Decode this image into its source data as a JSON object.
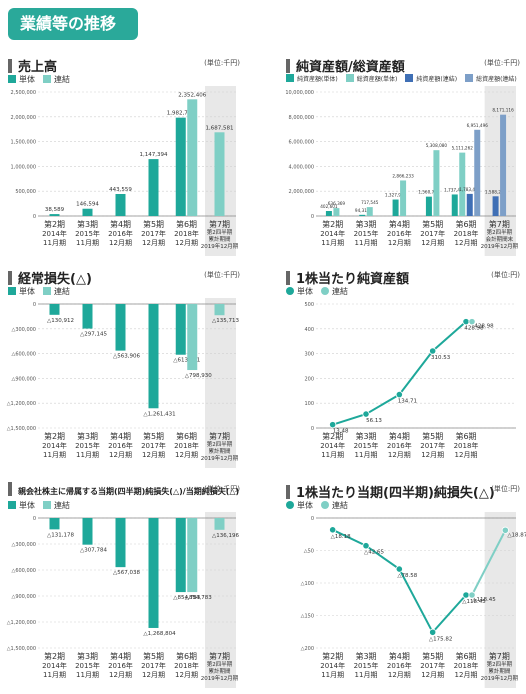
{
  "page_title": "業績等の推移",
  "chart_data": [
    {
      "id": "c1",
      "type": "bar",
      "title": "売上高",
      "unit": "(単位:千円)",
      "ylim": [
        0,
        2500000
      ],
      "yticks": [
        "0",
        "500,000",
        "1,000,000",
        "1,500,000",
        "2,000,000",
        "2,500,000"
      ],
      "categories": [
        [
          "第2期",
          "2014年",
          "11月期"
        ],
        [
          "第3期",
          "2015年",
          "11月期"
        ],
        [
          "第4期",
          "2016年",
          "12月期"
        ],
        [
          "第5期",
          "2017年",
          "12月期"
        ],
        [
          "第6期",
          "2018年",
          "12月期"
        ],
        [
          "第7期",
          "第2四半期",
          "累計期間",
          "2019年12月期"
        ]
      ],
      "series": [
        {
          "name": "単体",
          "color": "#1ea89a",
          "values": [
            38589,
            146594,
            443559,
            1147394,
            1982733,
            null
          ],
          "labels": [
            "38,589",
            "146,594",
            "443,559",
            "1,147,394",
            "1,982,733",
            ""
          ]
        },
        {
          "name": "連結",
          "color": "#7fcfc5",
          "values": [
            null,
            null,
            null,
            null,
            2352406,
            1687581
          ],
          "labels": [
            "",
            "",
            "",
            "",
            "2,352,406",
            "1,687,581"
          ]
        }
      ]
    },
    {
      "id": "c2",
      "type": "bar",
      "title": "純資産額/総資産額",
      "unit": "(単位:千円)",
      "ylim": [
        0,
        10000000
      ],
      "yticks": [
        "0",
        "2,000,000",
        "4,000,000",
        "6,000,000",
        "8,000,000",
        "10,000,000"
      ],
      "categories": [
        [
          "第2期",
          "2014年",
          "11月期"
        ],
        [
          "第3期",
          "2015年",
          "11月期"
        ],
        [
          "第4期",
          "2016年",
          "12月期"
        ],
        [
          "第5期",
          "2017年",
          "12月期"
        ],
        [
          "第6期",
          "2018年",
          "12月期"
        ],
        [
          "第7期",
          "第2四半期",
          "会計期間末",
          "2019年12月期"
        ]
      ],
      "series": [
        {
          "name": "純資産額(単体)",
          "color": "#1ea89a",
          "values": [
            402601,
            94311,
            1327923,
            1560774,
            1737463,
            null
          ],
          "labels": [
            "402,601",
            "94,311",
            "1,327,923",
            "1,560,774",
            "1,737,463",
            ""
          ]
        },
        {
          "name": "総資産額(単体)",
          "color": "#7fcfc5",
          "values": [
            636369,
            717545,
            2866233,
            5308080,
            5111262,
            null
          ],
          "labels": [
            "636,369",
            "717,545",
            "2,866,233",
            "5,308,080",
            "5,111,262",
            ""
          ]
        },
        {
          "name": "純資産額(連結)",
          "color": "#3f6fb5",
          "values": [
            null,
            null,
            null,
            null,
            1783443,
            1588242
          ],
          "labels": [
            "",
            "",
            "",
            "",
            "1,783,443",
            "1,588,242"
          ]
        },
        {
          "name": "総資産額(連結)",
          "color": "#7d9fc8",
          "values": [
            null,
            null,
            null,
            null,
            6951496,
            8171116
          ],
          "labels": [
            "",
            "",
            "",
            "",
            "6,951,496",
            "8,171,116"
          ]
        }
      ]
    },
    {
      "id": "c3",
      "type": "bar",
      "title": "経常損失(△)",
      "unit": "(単位:千円)",
      "ylim": [
        -1500000,
        0
      ],
      "yticks": [
        "0",
        "△300,000",
        "△600,000",
        "△900,000",
        "△1,200,000",
        "△1,500,000"
      ],
      "categories": [
        [
          "第2期",
          "2014年",
          "11月期"
        ],
        [
          "第3期",
          "2015年",
          "11月期"
        ],
        [
          "第4期",
          "2016年",
          "12月期"
        ],
        [
          "第5期",
          "2017年",
          "12月期"
        ],
        [
          "第6期",
          "2018年",
          "12月期"
        ],
        [
          "第7期",
          "第2四半期",
          "累計期間",
          "2019年12月期"
        ]
      ],
      "series": [
        {
          "name": "単体",
          "color": "#1ea89a",
          "values": [
            -130912,
            -297145,
            -563906,
            -1261431,
            -613611,
            null
          ],
          "labels": [
            "△130,912",
            "△297,145",
            "△563,906",
            "△1,261,431",
            "△613,611",
            ""
          ]
        },
        {
          "name": "連結",
          "color": "#7fcfc5",
          "values": [
            null,
            null,
            null,
            null,
            -798930,
            -135713
          ],
          "labels": [
            "",
            "",
            "",
            "",
            "△798,930",
            "△135,713"
          ]
        }
      ]
    },
    {
      "id": "c4",
      "type": "line",
      "title": "1株当たり純資産額",
      "unit": "(単位:円)",
      "ylim": [
        0,
        500
      ],
      "yticks": [
        "0",
        "100",
        "200",
        "300",
        "400",
        "500"
      ],
      "categories": [
        [
          "第2期",
          "2014年",
          "11月期"
        ],
        [
          "第3期",
          "2015年",
          "11月期"
        ],
        [
          "第4期",
          "2016年",
          "12月期"
        ],
        [
          "第5期",
          "2017年",
          "12月期"
        ],
        [
          "第6期",
          "2018年",
          "12月期"
        ]
      ],
      "series": [
        {
          "name": "単体",
          "color": "#1ea89a",
          "values": [
            13.48,
            56.13,
            134.71,
            310.53,
            428.98
          ],
          "labels": [
            "13.48",
            "56.13",
            "134.71",
            "310.53",
            "428.98"
          ]
        },
        {
          "name": "連結",
          "color": "#7fcfc5",
          "values": [
            null,
            null,
            null,
            null,
            428.98
          ],
          "labels": [
            "",
            "",
            "",
            "",
            "428.98"
          ]
        }
      ]
    },
    {
      "id": "c5",
      "type": "bar",
      "title": "親会社株主に帰属する当期(四半期)純損失(△)/当期純損失(△)",
      "unit": "(単位:千円)",
      "ylim": [
        -1500000,
        0
      ],
      "yticks": [
        "0",
        "△300,000",
        "△600,000",
        "△900,000",
        "△1,200,000",
        "△1,500,000"
      ],
      "categories": [
        [
          "第2期",
          "2014年",
          "11月期"
        ],
        [
          "第3期",
          "2015年",
          "11月期"
        ],
        [
          "第4期",
          "2016年",
          "12月期"
        ],
        [
          "第5期",
          "2017年",
          "12月期"
        ],
        [
          "第6期",
          "2018年",
          "12月期"
        ],
        [
          "第7期",
          "第2四半期",
          "累計期間",
          "2019年12月期"
        ]
      ],
      "series": [
        {
          "name": "単体",
          "color": "#1ea89a",
          "values": [
            -131178,
            -307784,
            -567038,
            -1268804,
            -854783,
            null
          ],
          "labels": [
            "△131,178",
            "△307,784",
            "△567,038",
            "△1,268,804",
            "△854,783",
            ""
          ]
        },
        {
          "name": "連結",
          "color": "#7fcfc5",
          "values": [
            null,
            null,
            null,
            null,
            -854783,
            -136196
          ],
          "labels": [
            "",
            "",
            "",
            "",
            "△854,783",
            "△136,196"
          ]
        }
      ]
    },
    {
      "id": "c6",
      "type": "line",
      "title": "1株当たり当期(四半期)純損失(△)",
      "unit": "(単位:円)",
      "ylim": [
        -200,
        0
      ],
      "yticks": [
        "0",
        "△50",
        "△100",
        "△150",
        "△200"
      ],
      "categories": [
        [
          "第2期",
          "2014年",
          "11月期"
        ],
        [
          "第3期",
          "2015年",
          "11月期"
        ],
        [
          "第4期",
          "2016年",
          "12月期"
        ],
        [
          "第5期",
          "2017年",
          "12月期"
        ],
        [
          "第6期",
          "2018年",
          "12月期"
        ],
        [
          "第7期",
          "第2四半期",
          "累計期間",
          "2019年12月期"
        ]
      ],
      "series": [
        {
          "name": "単体",
          "color": "#1ea89a",
          "values": [
            -18.18,
            -42.65,
            -78.58,
            -175.82,
            -118.45,
            null
          ],
          "labels": [
            "△18.18",
            "△42.65",
            "△78.58",
            "△175.82",
            "△118.45",
            ""
          ]
        },
        {
          "name": "連結",
          "color": "#7fcfc5",
          "values": [
            null,
            null,
            null,
            null,
            -118.45,
            -18.87
          ],
          "labels": [
            "",
            "",
            "",
            "",
            "△118.45",
            "△18.87"
          ]
        }
      ]
    }
  ]
}
